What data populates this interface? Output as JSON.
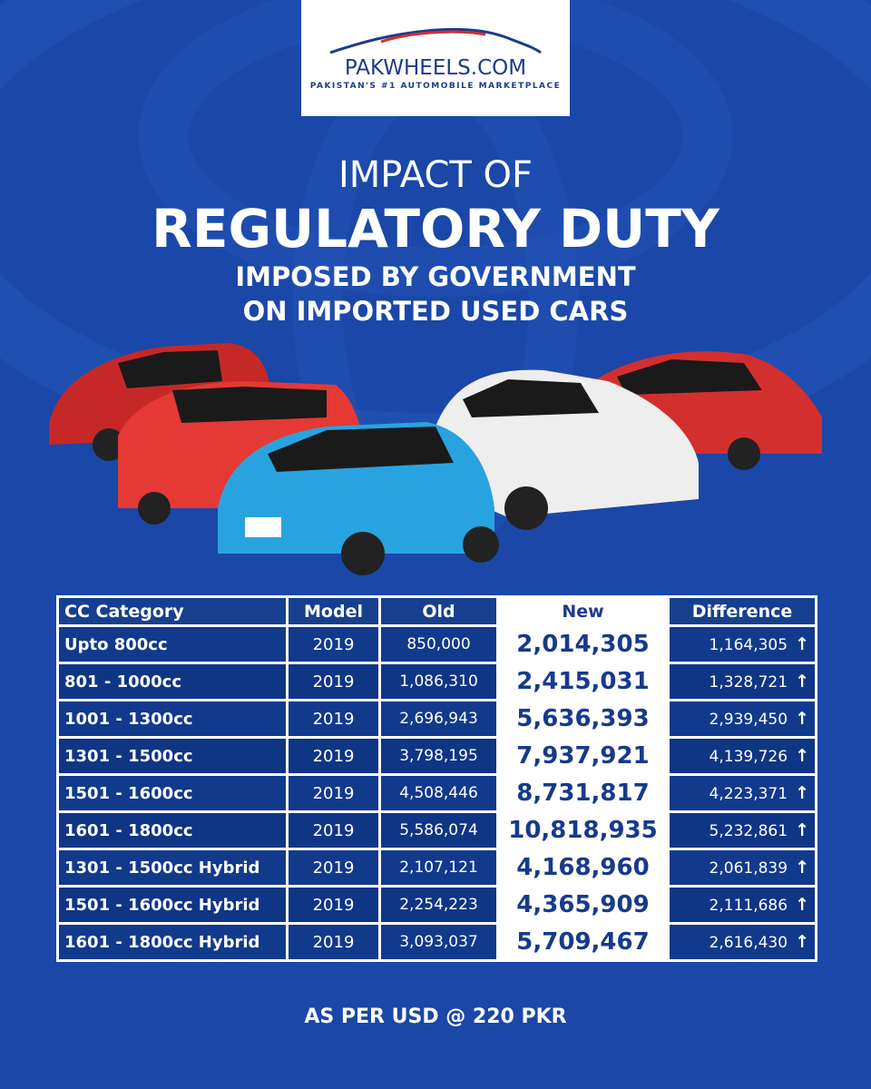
{
  "brand": {
    "name": "PAKWHEELS.COM",
    "tagline": "PAKISTAN'S #1 AUTOMOBILE MARKETPLACE"
  },
  "headline": {
    "line1": "IMPACT OF",
    "line2": "REGULATORY DUTY",
    "line3": "IMPOSED BY GOVERNMENT",
    "line4": "ON IMPORTED USED CARS"
  },
  "table": {
    "headers": [
      "CC Category",
      "Model",
      "Old",
      "New",
      "Difference"
    ],
    "rows": [
      {
        "category": "Upto 800cc",
        "model": "2019",
        "old": "850,000",
        "new": "2,014,305",
        "difference": "1,164,305"
      },
      {
        "category": "801 - 1000cc",
        "model": "2019",
        "old": "1,086,310",
        "new": "2,415,031",
        "difference": "1,328,721"
      },
      {
        "category": "1001 - 1300cc",
        "model": "2019",
        "old": "2,696,943",
        "new": "5,636,393",
        "difference": "2,939,450"
      },
      {
        "category": "1301 - 1500cc",
        "model": "2019",
        "old": "3,798,195",
        "new": "7,937,921",
        "difference": "4,139,726"
      },
      {
        "category": "1501 - 1600cc",
        "model": "2019",
        "old": "4,508,446",
        "new": "8,731,817",
        "difference": "4,223,371"
      },
      {
        "category": "1601 - 1800cc",
        "model": "2019",
        "old": "5,586,074",
        "new": "10,818,935",
        "difference": "5,232,861"
      },
      {
        "category": "1301 - 1500cc Hybrid",
        "model": "2019",
        "old": "2,107,121",
        "new": "4,168,960",
        "difference": "2,061,839"
      },
      {
        "category": "1501 - 1600cc Hybrid",
        "model": "2019",
        "old": "2,254,223",
        "new": "4,365,909",
        "difference": "2,111,686"
      },
      {
        "category": "1601 - 1800cc Hybrid",
        "model": "2019",
        "old": "3,093,037",
        "new": "5,709,467",
        "difference": "2,616,430"
      }
    ],
    "difference_icon": "arrow-up-icon"
  },
  "footer": "AS PER USD @ 220 PKR",
  "colors": {
    "background": "#1a47a8",
    "brand_blue": "#1e3b8c",
    "brand_red": "#d32f2f"
  }
}
